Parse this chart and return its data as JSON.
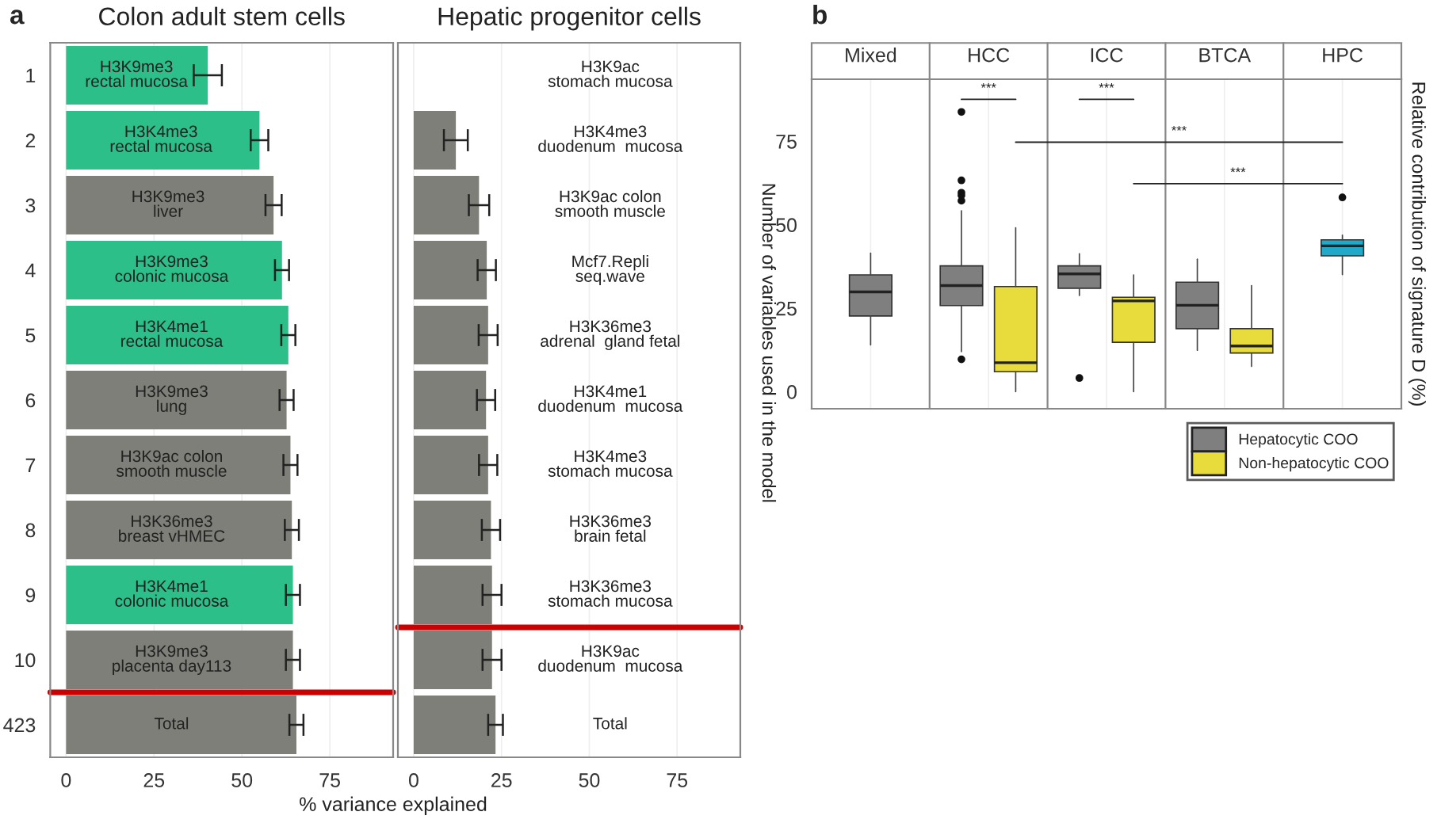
{
  "chart_data": [
    {
      "type": "bar",
      "orientation": "horizontal",
      "title": "Colon adult stem cells",
      "xlabel": "% variance explained",
      "categories": [
        "1",
        "2",
        "3",
        "4",
        "5",
        "6",
        "7",
        "8",
        "9",
        "10",
        "423"
      ],
      "values": [
        40.3,
        55,
        59,
        61.4,
        63.2,
        62.7,
        63.8,
        64.2,
        64.5,
        64.5,
        65.5
      ],
      "errors": [
        4,
        2.5,
        2.3,
        2,
        2,
        2,
        2,
        2,
        2,
        2,
        2
      ],
      "colors": [
        "#2dbf8a",
        "#2dbf8a",
        "#7f7f7a",
        "#2dbf8a",
        "#2dbf8a",
        "#7f7f7a",
        "#7f7f7a",
        "#7f7f7a",
        "#2dbf8a",
        "#7f7f7a",
        "#7f7f7a"
      ],
      "xlim": [
        -4.5,
        93
      ],
      "xticks": [
        0,
        25,
        50,
        75
      ],
      "grid": "x",
      "ref_lines": [
        {
          "axis": "y",
          "value": "10",
          "color": "#cc0000"
        }
      ],
      "annotations": [
        "a",
        {
          "text": "H3K9me3\nrectal mucosa",
          "x": 20,
          "y": "1"
        },
        {
          "text": "H3K4me3\nrectal mucosa",
          "x": 27,
          "y": "2"
        },
        {
          "text": "H3K9me3\nliver",
          "x": 29,
          "y": "3"
        },
        {
          "text": "H3K9me3\ncolonic mucosa",
          "x": 30,
          "y": "4"
        },
        {
          "text": "H3K4me1\nrectal mucosa",
          "x": 30,
          "y": "5"
        },
        {
          "text": "H3K9me3\nlung",
          "x": 30,
          "y": "6"
        },
        {
          "text": "H3K9ac colon\nsmooth muscle",
          "x": 30,
          "y": "7"
        },
        {
          "text": "H3K36me3\nbreast vHMEC",
          "x": 30,
          "y": "8"
        },
        {
          "text": "H3K4me1\ncolonic mucosa",
          "x": 30,
          "y": "9"
        },
        {
          "text": "H3K9me3\nplacenta day113",
          "x": 30,
          "y": "10"
        },
        {
          "text": "Total",
          "x": 30,
          "y": "423"
        }
      ]
    },
    {
      "type": "bar",
      "orientation": "horizontal",
      "title": "Hepatic progenitor cells",
      "categories": [
        "1",
        "2",
        "3",
        "4",
        "5",
        "6",
        "7",
        "8",
        "9",
        "10",
        "423"
      ],
      "tick_labels": "x",
      "values": [
        null,
        12,
        18.6,
        20.8,
        21.2,
        20.6,
        21.2,
        22,
        22.3,
        22.3,
        23.3
      ],
      "errors": [
        null,
        3.4,
        2.9,
        2.6,
        2.7,
        2.6,
        2.6,
        2.6,
        2.7,
        2.7,
        2.1
      ],
      "colors": [
        "#7f7f7a",
        "#7f7f7a",
        "#7f7f7a",
        "#7f7f7a",
        "#7f7f7a",
        "#7f7f7a",
        "#7f7f7a",
        "#7f7f7a",
        "#7f7f7a",
        "#7f7f7a",
        "#7f7f7a"
      ],
      "xlim": [
        -4.5,
        93
      ],
      "xticks": [
        0,
        25,
        50,
        75
      ],
      "grid": "x",
      "ref_lines": [
        {
          "axis": "y",
          "value": "9",
          "color": "#cc0000"
        }
      ],
      "annotations": [
        "H3K9ac\nstomach mucosa",
        "H3K4me3\nduodenum  mucosa",
        "H3K9ac colon\nsmooth muscle",
        "Mcf7.Repli\nseq.wave",
        "H3K36me3\nadrenal  gland fetal",
        "H3K4me1\nduodenum  mucosa",
        "H3K4me3\nstomach mucosa",
        "H3K36me3\nbrain fetal",
        "H3K36me3\nstomach mucosa",
        "H3K9ac\nduodenum  mucosa",
        "Total"
      ]
    },
    {
      "type": "box",
      "categories": [
        "Mixed",
        "HCC",
        "ICC",
        "BTCA",
        "HPC"
      ],
      "ylabel": "Number of variables used in the model",
      "y2label": "Relative contribution of signature D (%)",
      "ylim": [
        -5.1,
        93.6
      ],
      "yticks": [
        0,
        25,
        50,
        75
      ],
      "grid": "x",
      "legend": "bottom right",
      "annotations": [
        "b",
        "***",
        "***",
        "***",
        "***"
      ],
      "series": [
        {
          "name": "Hepatocytic COO",
          "color": "#7f7f7f",
          "boxes": [
            {
              "low": 14,
              "q1": 22.7,
              "median": 29.9,
              "q3": 35,
              "high": 41.5
            },
            {
              "low": 12,
              "q1": 25.8,
              "median": 31.8,
              "q3": 37.7,
              "high": 54.2,
              "outliers": [
                9.7,
                57.2,
                58.8,
                59.6,
                63.3,
                83.8
              ]
            },
            {
              "low": 28.8,
              "q1": 31,
              "median": 35.3,
              "q3": 37.7,
              "high": 41.3,
              "outliers": [
                4.1
              ]
            },
            {
              "low": 12.4,
              "q1": 18.9,
              "median": 25.9,
              "q3": 32.8,
              "high": 39.7
            },
            null
          ]
        },
        {
          "name": "Non-hepatocytic COO",
          "color": "#e8dc3c",
          "boxes": [
            null,
            {
              "low": 0,
              "q1": 6,
              "median": 8.7,
              "q3": 31.5,
              "high": 49.1
            },
            {
              "low": 0,
              "q1": 14.8,
              "median": 27.2,
              "q3": 28.3,
              "high": 35
            },
            {
              "low": 7.6,
              "q1": 11.6,
              "median": 13.7,
              "q3": 18.9,
              "high": 31.8
            },
            null
          ]
        },
        {
          "color": "#20a9c9",
          "boxes": [
            null,
            null,
            null,
            null,
            {
              "low": 35.1,
              "q1": 40.7,
              "median": 43.7,
              "q3": 45.5,
              "high": 46.9,
              "outliers": [
                58.2
              ]
            }
          ]
        }
      ]
    }
  ]
}
